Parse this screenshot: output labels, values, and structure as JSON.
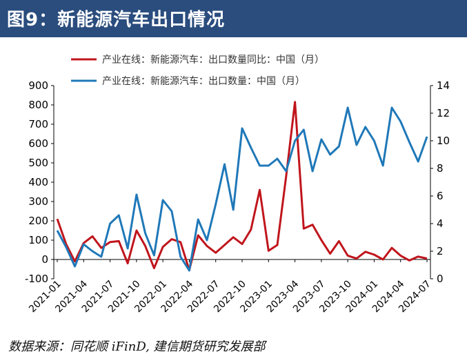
{
  "header": {
    "title": "图9：新能源汽车出口情况"
  },
  "footer": {
    "source": "数据来源：同花顺 iFinD, 建信期货研究发展部"
  },
  "colors": {
    "header_bg": "#2a4d7e",
    "red_series": "#c0151c",
    "blue_series": "#1f78b8"
  },
  "chart_data": {
    "type": "line",
    "legend_position": "top",
    "grid": false,
    "x": [
      "2021-01",
      "2021-02",
      "2021-03",
      "2021-04",
      "2021-05",
      "2021-06",
      "2021-07",
      "2021-08",
      "2021-09",
      "2021-10",
      "2021-11",
      "2021-12",
      "2022-01",
      "2022-02",
      "2022-03",
      "2022-04",
      "2022-05",
      "2022-06",
      "2022-07",
      "2022-08",
      "2022-09",
      "2022-10",
      "2022-11",
      "2022-12",
      "2023-01",
      "2023-02",
      "2023-03",
      "2023-04",
      "2023-05",
      "2023-06",
      "2023-07",
      "2023-08",
      "2023-09",
      "2023-10",
      "2023-11",
      "2023-12",
      "2024-01",
      "2024-02",
      "2024-03",
      "2024-04",
      "2024-05",
      "2024-06",
      "2024-07"
    ],
    "x_tick_labels": [
      "2021-01",
      "2021-04",
      "2021-07",
      "2021-10",
      "2022-01",
      "2022-04",
      "2022-07",
      "2022-10",
      "2023-01",
      "2023-04",
      "2023-07",
      "2023-10",
      "2024-01",
      "2024-04",
      "2024-07"
    ],
    "y_left": {
      "lim": [
        -100,
        900
      ],
      "ticks": [
        "-100",
        "0",
        "100",
        "200",
        "300",
        "400",
        "500",
        "600",
        "700",
        "800",
        "900"
      ]
    },
    "y_right": {
      "lim": [
        0,
        14
      ],
      "ticks": [
        "0",
        "2",
        "4",
        "6",
        "8",
        "10",
        "12",
        "14"
      ]
    },
    "series": [
      {
        "name": "产业在线：新能源汽车：出口数量同比：中国（月）",
        "axis": "left",
        "color": "#c0151c",
        "values": [
          210,
          80,
          -10,
          85,
          120,
          60,
          90,
          95,
          -20,
          150,
          70,
          -45,
          65,
          105,
          90,
          -55,
          125,
          70,
          35,
          75,
          115,
          80,
          155,
          360,
          45,
          75,
          430,
          815,
          160,
          180,
          100,
          30,
          95,
          20,
          5,
          40,
          25,
          0,
          60,
          20,
          -5,
          15,
          5
        ]
      },
      {
        "name": "产业在线：新能源汽车：出口数量：中国（月）",
        "axis": "right",
        "color": "#1f78b8",
        "values": [
          3.5,
          2.3,
          0.9,
          2.5,
          2.0,
          1.6,
          4.0,
          4.6,
          2.2,
          6.1,
          3.3,
          1.7,
          5.7,
          4.9,
          1.6,
          0.6,
          4.3,
          2.8,
          5.4,
          8.3,
          5.0,
          10.9,
          9.5,
          8.2,
          8.2,
          8.7,
          7.8,
          10.0,
          10.8,
          7.8,
          10.1,
          9.0,
          9.6,
          12.4,
          9.7,
          11.0,
          10.0,
          8.2,
          12.4,
          11.4,
          9.9,
          8.5,
          10.3
        ]
      }
    ]
  }
}
